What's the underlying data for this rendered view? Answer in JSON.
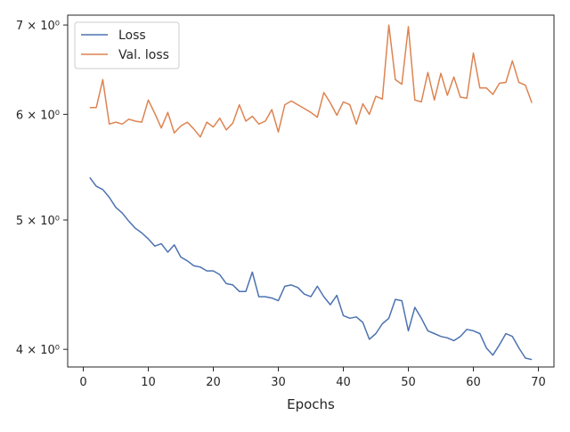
{
  "chart_data": {
    "type": "line",
    "xlabel": "Epochs",
    "ylabel": "",
    "yscale": "log",
    "xlim": [
      -2.4,
      72.4
    ],
    "ylim": [
      3.88,
      7.12
    ],
    "xticks": [
      0,
      10,
      20,
      30,
      40,
      50,
      60,
      70
    ],
    "yticks": [
      {
        "value": 4,
        "label": "4 × 10⁰"
      },
      {
        "value": 5,
        "label": "5 × 10⁰"
      },
      {
        "value": 6,
        "label": "6 × 10⁰"
      },
      {
        "value": 7,
        "label": "7 × 10⁰"
      }
    ],
    "legend": "upper-left",
    "grid": false,
    "x": [
      1,
      2,
      3,
      4,
      5,
      6,
      7,
      8,
      9,
      10,
      11,
      12,
      13,
      14,
      15,
      16,
      17,
      18,
      19,
      20,
      21,
      22,
      23,
      24,
      25,
      26,
      27,
      28,
      29,
      30,
      31,
      32,
      33,
      34,
      35,
      36,
      37,
      38,
      39,
      40,
      41,
      42,
      43,
      44,
      45,
      46,
      47,
      48,
      49,
      50,
      51,
      52,
      53,
      54,
      55,
      56,
      57,
      58,
      59,
      60,
      61,
      62,
      63,
      64,
      65,
      66,
      67,
      68,
      69
    ],
    "series": [
      {
        "name": "Loss",
        "color": "#4c72b0",
        "values": [
          5.38,
          5.3,
          5.27,
          5.2,
          5.11,
          5.06,
          4.99,
          4.93,
          4.89,
          4.84,
          4.78,
          4.8,
          4.73,
          4.79,
          4.69,
          4.66,
          4.62,
          4.61,
          4.58,
          4.58,
          4.55,
          4.48,
          4.47,
          4.42,
          4.42,
          4.57,
          4.38,
          4.38,
          4.37,
          4.35,
          4.46,
          4.47,
          4.45,
          4.4,
          4.38,
          4.46,
          4.38,
          4.32,
          4.39,
          4.24,
          4.22,
          4.23,
          4.19,
          4.07,
          4.11,
          4.18,
          4.22,
          4.36,
          4.35,
          4.13,
          4.3,
          4.22,
          4.13,
          4.11,
          4.09,
          4.08,
          4.06,
          4.09,
          4.14,
          4.13,
          4.11,
          4.01,
          3.96,
          4.03,
          4.11,
          4.09,
          4.01,
          3.94,
          3.93
        ]
      },
      {
        "name": "Val. loss",
        "color": "#dd8452",
        "values": [
          6.07,
          6.07,
          6.37,
          5.9,
          5.92,
          5.9,
          5.95,
          5.93,
          5.92,
          6.15,
          6.01,
          5.86,
          6.02,
          5.81,
          5.88,
          5.92,
          5.85,
          5.77,
          5.92,
          5.87,
          5.96,
          5.84,
          5.91,
          6.1,
          5.93,
          5.98,
          5.9,
          5.93,
          6.05,
          5.82,
          6.1,
          6.14,
          6.1,
          6.06,
          6.02,
          5.97,
          6.23,
          6.12,
          5.99,
          6.13,
          6.1,
          5.9,
          6.11,
          6.0,
          6.19,
          6.16,
          7.0,
          6.37,
          6.32,
          6.98,
          6.15,
          6.13,
          6.45,
          6.15,
          6.44,
          6.2,
          6.4,
          6.18,
          6.17,
          6.67,
          6.28,
          6.28,
          6.21,
          6.33,
          6.34,
          6.58,
          6.34,
          6.31,
          6.12
        ]
      }
    ]
  }
}
